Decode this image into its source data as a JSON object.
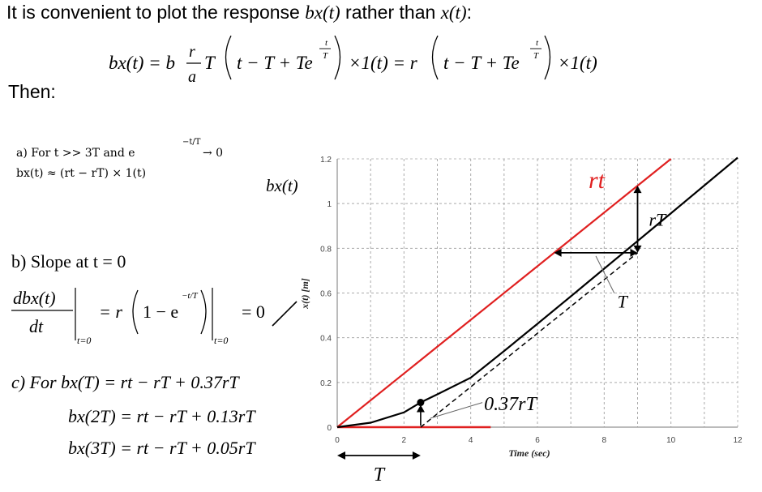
{
  "intro": {
    "prefix": "It is convenient to plot the response ",
    "bx": "bx(t)",
    "middle": " rather than ",
    "x": "x(t)",
    "suffix": ":"
  },
  "then_label": "Then:",
  "equation_main": {
    "lhs": "bx(t) = b",
    "frac_num": "r",
    "frac_den": "a",
    "after_frac": "T",
    "inside": "t − T + Te",
    "exponent_num": "t",
    "exponent_den": "T",
    "step": "×1(t) = r",
    "inside2": "t − T + Te",
    "step2": "×1(t)"
  },
  "note_a": {
    "line1": "a) For t >> 3T and e",
    "exponent": "−t/T",
    "arrow": "→ 0",
    "line2": "bx(t) ≈ (rt − rT) × 1(t)"
  },
  "note_b": {
    "title": "b) Slope at t = 0",
    "num": "dbx(t)",
    "den": "dt",
    "eval": "t=0",
    "rhs": "= r",
    "inner": "1 − e",
    "eval2": "t=0",
    "result": "= 0"
  },
  "note_c": {
    "line1": "c) For bx(T) = rt − rT + 0.37rT",
    "line2": "bx(2T) = rt − rT + 0.13rT",
    "line3": "bx(3T) = rt − rT + 0.05rT"
  },
  "chart_data": {
    "type": "line",
    "title": "",
    "xlabel": "Time (sec)",
    "ylabel": "x(t) [m]",
    "xlim": [
      0,
      12
    ],
    "ylim": [
      0,
      1.2
    ],
    "xticks": [
      0,
      2,
      4,
      6,
      8,
      10,
      12
    ],
    "yticks": [
      0,
      0.2,
      0.4,
      0.6,
      0.8,
      1,
      1.2
    ],
    "grid": true,
    "params": {
      "r": 0.12,
      "T": 2.5
    },
    "series": [
      {
        "name": "rt",
        "color": "#e02020",
        "x": [
          0,
          10
        ],
        "y": [
          0,
          1.2
        ]
      },
      {
        "name": "",
        "color": "#000000",
        "x": [
          0,
          1,
          2,
          2.5,
          3,
          4,
          5,
          6,
          7,
          8,
          9,
          10,
          11,
          12
        ],
        "y": [
          0,
          0.0198,
          0.0659,
          0.1104,
          0.1468,
          0.2213,
          0.3406,
          0.4623,
          0.5852,
          0.7086,
          0.8325,
          0.9567,
          1.0808,
          1.2053
        ]
      },
      {
        "name": "",
        "color": "#000000",
        "dashed": true,
        "x": [
          2.5,
          9
        ],
        "y": [
          0,
          0.78
        ]
      }
    ],
    "annotations": {
      "curve_label": "bx(t)",
      "rt_label": "rt",
      "rT_label": "rT",
      "T_label_right": "T",
      "label_037": "0.37rT",
      "T_label_bottom": "T"
    }
  }
}
